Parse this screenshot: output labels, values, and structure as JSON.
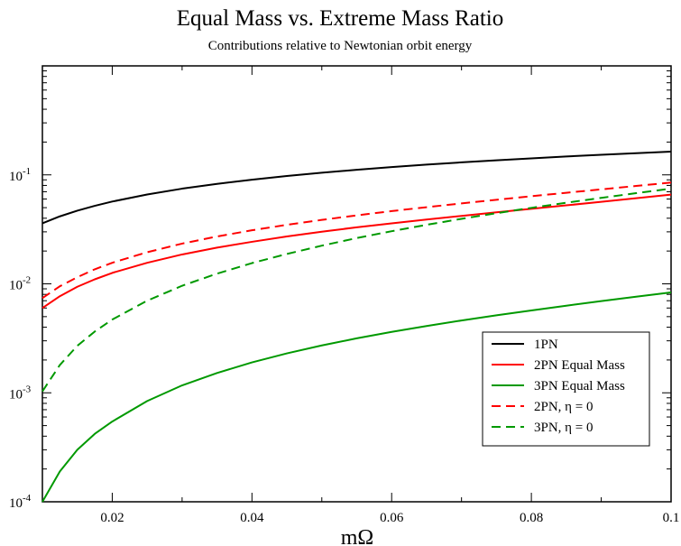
{
  "chart_data": {
    "type": "line",
    "title": "Equal Mass vs. Extreme Mass Ratio",
    "subtitle": "Contributions relative to Newtonian orbit energy",
    "xlabel": "mΩ",
    "ylabel": "",
    "xlim": [
      0.01,
      0.1
    ],
    "ylim": [
      0.0001,
      1
    ],
    "yscale": "log",
    "grid": false,
    "legend_position": "bottom-right",
    "x_ticks": [
      {
        "value": 0.02,
        "label": "0.02"
      },
      {
        "value": 0.04,
        "label": "0.04"
      },
      {
        "value": 0.06,
        "label": "0.06"
      },
      {
        "value": 0.08,
        "label": "0.08"
      },
      {
        "value": 0.1,
        "label": "0.1"
      }
    ],
    "y_ticks": [
      {
        "value": 0.0001,
        "base": "10",
        "exp": "-4"
      },
      {
        "value": 0.001,
        "base": "10",
        "exp": "-3"
      },
      {
        "value": 0.01,
        "base": "10",
        "exp": "-2"
      },
      {
        "value": 0.1,
        "base": "10",
        "exp": "-1"
      }
    ],
    "x": [
      0.01,
      0.0125,
      0.015,
      0.0175,
      0.02,
      0.025,
      0.03,
      0.035,
      0.04,
      0.045,
      0.05,
      0.055,
      0.06,
      0.065,
      0.07,
      0.075,
      0.08,
      0.085,
      0.09,
      0.095,
      0.1
    ],
    "series": [
      {
        "name": "1PN",
        "color": "#000000",
        "dash": "solid",
        "values": [
          0.0359,
          0.0416,
          0.0469,
          0.052,
          0.0569,
          0.0661,
          0.0747,
          0.0827,
          0.0903,
          0.0976,
          0.1046,
          0.1113,
          0.1178,
          0.1241,
          0.1302,
          0.1361,
          0.1418,
          0.1474,
          0.1528,
          0.1581,
          0.1633
        ]
      },
      {
        "name": "2PN Equal Mass",
        "color": "#ff0000",
        "dash": "solid",
        "values": [
          0.006,
          0.0077,
          0.0094,
          0.011,
          0.0126,
          0.0156,
          0.0186,
          0.0215,
          0.0243,
          0.0272,
          0.0301,
          0.033,
          0.0359,
          0.0389,
          0.042,
          0.0453,
          0.0488,
          0.0525,
          0.0566,
          0.061,
          0.0659
        ]
      },
      {
        "name": "3PN Equal Mass",
        "color": "#009900",
        "dash": "solid",
        "values": [
          0.0001,
          0.00019,
          0.0003,
          0.00042,
          0.000545,
          0.00084,
          0.00117,
          0.00152,
          0.0019,
          0.0023,
          0.00272,
          0.00316,
          0.00362,
          0.0041,
          0.00461,
          0.00514,
          0.0057,
          0.0063,
          0.00694,
          0.00762,
          0.00835
        ]
      },
      {
        "name": "2PN,  η = 0",
        "color": "#ff0000",
        "dash": "dashed",
        "values": [
          0.0074,
          0.0095,
          0.0115,
          0.0136,
          0.0156,
          0.0195,
          0.0234,
          0.0272,
          0.031,
          0.0348,
          0.0386,
          0.0425,
          0.0465,
          0.0505,
          0.0547,
          0.0591,
          0.0637,
          0.0685,
          0.0736,
          0.0791,
          0.085
        ]
      },
      {
        "name": "3PN, η = 0",
        "color": "#009900",
        "dash": "dashed",
        "values": [
          0.00103,
          0.0018,
          0.0027,
          0.00365,
          0.0047,
          0.007,
          0.0096,
          0.0124,
          0.0155,
          0.0188,
          0.0224,
          0.0263,
          0.0304,
          0.0348,
          0.0395,
          0.0445,
          0.0498,
          0.0555,
          0.0615,
          0.0679,
          0.0748
        ]
      }
    ]
  }
}
